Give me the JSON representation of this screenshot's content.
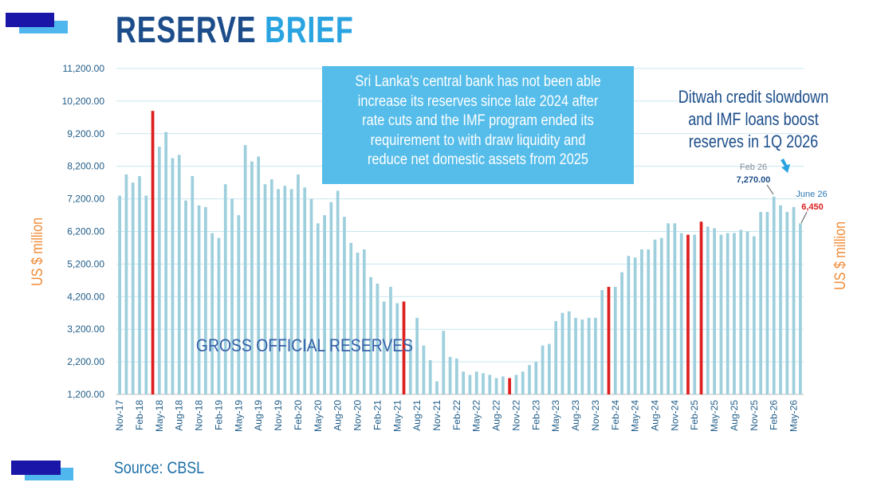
{
  "header": {
    "title_part1": "RESERVE",
    "title_part2": "BRIEF"
  },
  "callout": {
    "text": "Sri Lanka's central bank has not been able increase its reserves since late 2024 after rate cuts and the IMF program ended its requirement to with draw liquidity and reduce net domestic assets from 2025"
  },
  "annotation": {
    "text": "Ditwah credit slowdown and IMF loans boost reserves in 1Q 2026",
    "feb_label": "Feb 26",
    "feb_value": "7,270.00",
    "june_label": "June 26",
    "june_value": "6,450"
  },
  "footer": {
    "source": "Source: CBSL"
  },
  "colors": {
    "bar": "#9ecfdd",
    "highlight": "#dd1f1f",
    "title_dark": "#1c4d8a",
    "title_light": "#2aa4e0",
    "accent_orange": "#f08a35",
    "deco_dark": "#1a16a8",
    "deco_light": "#4fb6ee"
  },
  "chart_data": {
    "type": "bar",
    "title": "",
    "series_label": "GROSS OFFICIAL RESERVES",
    "ylabel": "US $ million",
    "ylabel_right": "US $ million",
    "ylim": [
      1200,
      11200
    ],
    "y_ticks": [
      "1,200.00",
      "2,200.00",
      "3,200.00",
      "4,200.00",
      "5,200.00",
      "6,200.00",
      "7,200.00",
      "8,200.00",
      "9,200.00",
      "10,200.00",
      "11,200.00"
    ],
    "x_tick_labels": [
      "Nov-17",
      "Feb-18",
      "May-18",
      "Aug-18",
      "Nov-18",
      "Feb-19",
      "May-19",
      "Aug-19",
      "Nov-19",
      "Feb-20",
      "May-20",
      "Aug-20",
      "Nov-20",
      "Feb-21",
      "May-21",
      "Aug-21",
      "Nov-21",
      "Feb-22",
      "May-22",
      "Aug-22",
      "Nov-22",
      "Feb-23",
      "May-23",
      "Aug-23",
      "Nov-23",
      "Feb-24",
      "May-24",
      "Aug-24",
      "Nov-24",
      "Feb-25",
      "May-25",
      "Aug-25",
      "Nov-25",
      "Feb-26",
      "May-26"
    ],
    "start_month": "Nov-17",
    "highlight_months": [
      "Apr-18",
      "Jun-21",
      "Oct-22",
      "Jan-24",
      "Jan-25",
      "Mar-25"
    ],
    "values": [
      7300,
      7950,
      7700,
      7900,
      7300,
      9900,
      8800,
      9250,
      8450,
      8550,
      7150,
      7900,
      7000,
      6950,
      6150,
      6000,
      7650,
      7200,
      6700,
      8850,
      8350,
      8500,
      7650,
      7800,
      7500,
      7600,
      7500,
      7950,
      7550,
      7200,
      6450,
      6700,
      7100,
      7450,
      6650,
      5850,
      5550,
      5650,
      4800,
      4600,
      4050,
      4500,
      4000,
      4050,
      2800,
      3550,
      2700,
      2250,
      1600,
      3150,
      2350,
      2300,
      1900,
      1800,
      1900,
      1850,
      1800,
      1700,
      1750,
      1700,
      1800,
      1900,
      2100,
      2200,
      2700,
      2750,
      3450,
      3700,
      3750,
      3550,
      3500,
      3550,
      3550,
      4400,
      4500,
      4500,
      4950,
      5450,
      5400,
      5650,
      5650,
      5950,
      6000,
      6450,
      6450,
      6150,
      6100,
      6100,
      6500,
      6350,
      6300,
      6100,
      6150,
      6150,
      6250,
      6200,
      6050,
      6800,
      6800,
      7270,
      7000,
      6800,
      6950,
      6450
    ]
  }
}
